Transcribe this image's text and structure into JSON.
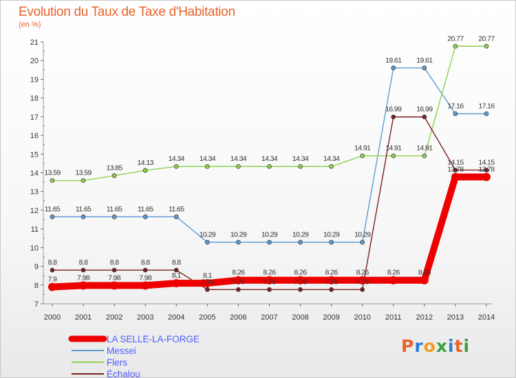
{
  "header": {
    "title": "Evolution du Taux de Taxe d'Habitation",
    "unit": "(en %)"
  },
  "brand": {
    "letters": [
      "P",
      "r",
      "o",
      "x",
      "i",
      "t",
      "i"
    ],
    "colors": [
      "#e8622a",
      "#2a7fd4",
      "#f0a020",
      "#3aa13a",
      "#2a7fd4",
      "#e8622a",
      "#3aa13a"
    ]
  },
  "chart_data": {
    "type": "line",
    "x": [
      "2000",
      "2001",
      "2002",
      "2003",
      "2004",
      "2005",
      "2006",
      "2007",
      "2008",
      "2009",
      "2010",
      "2011",
      "2012",
      "2013",
      "2014"
    ],
    "ylim": [
      7,
      21
    ],
    "yticks": [
      "7",
      "8",
      "9",
      "10",
      "11",
      "12",
      "13",
      "14",
      "15",
      "16",
      "17",
      "18",
      "19",
      "20",
      "21"
    ],
    "grid": false,
    "legend_position": "bottom-left",
    "series": [
      {
        "name": "LA SELLE-LA-FORGE",
        "color": "#ee0000",
        "emphasis": true,
        "values": [
          7.9,
          7.98,
          7.98,
          7.98,
          8.1,
          8.1,
          8.26,
          8.26,
          8.26,
          8.26,
          8.26,
          8.26,
          8.26,
          13.78,
          13.78
        ],
        "labels": [
          "7.9",
          "7.98",
          "7.98",
          "7.98",
          "8.1",
          "8.1",
          "8.26",
          "8.26",
          "8.26",
          "8.26",
          "8.26",
          "8.26",
          "8.26",
          "13.78",
          "13.78"
        ]
      },
      {
        "name": "Messei",
        "color": "#5b9bd5",
        "values": [
          11.65,
          11.65,
          11.65,
          11.65,
          11.65,
          10.29,
          10.29,
          10.29,
          10.29,
          10.29,
          10.29,
          19.61,
          19.61,
          17.16,
          17.16
        ],
        "labels": [
          "11.65",
          "11.65",
          "11.65",
          "11.65",
          "11.65",
          "10.29",
          "10.29",
          "10.29",
          "10.29",
          "10.29",
          "10.29",
          "19.61",
          "19.61",
          "17.16",
          "17.16"
        ]
      },
      {
        "name": "Flers",
        "color": "#8fd14f",
        "values": [
          13.59,
          13.59,
          13.85,
          14.13,
          14.34,
          14.34,
          14.34,
          14.34,
          14.34,
          14.34,
          14.91,
          14.91,
          14.91,
          20.77,
          20.77
        ],
        "labels": [
          "13.59",
          "13.59",
          "13.85",
          "14.13",
          "14.34",
          "14.34",
          "14.34",
          "14.34",
          "14.34",
          "14.34",
          "14.91",
          "14.91",
          "14.91",
          "20.77",
          "20.77"
        ]
      },
      {
        "name": "Échalou",
        "color": "#7a1e1e",
        "values": [
          8.8,
          8.8,
          8.8,
          8.8,
          8.8,
          7.76,
          7.76,
          7.76,
          7.76,
          7.76,
          7.76,
          16.99,
          16.99,
          14.15,
          14.15
        ],
        "labels": [
          "8.8",
          "8.8",
          "8.8",
          "8.8",
          "8.8",
          "7.76",
          "7.76",
          "7.76",
          "7.76",
          "7.76",
          "7.76",
          "16.99",
          "16.99",
          "14.15",
          "14.15"
        ]
      }
    ]
  }
}
